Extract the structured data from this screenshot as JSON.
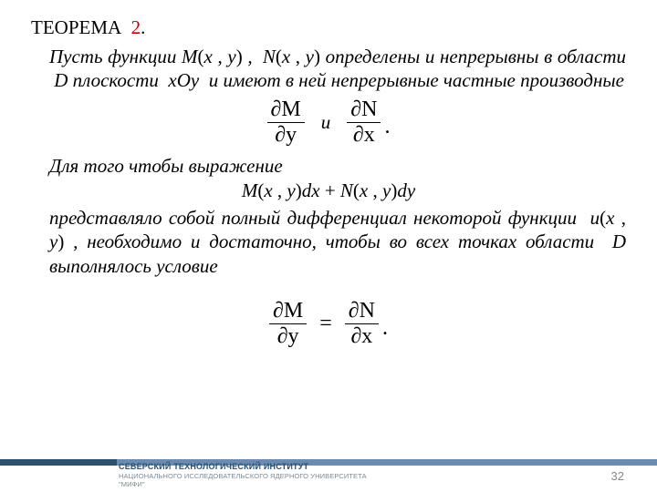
{
  "heading": {
    "label": "ТЕОРЕМА",
    "number": "2",
    "color": "#c00000"
  },
  "para1_a": "Пусть функции ",
  "M": "M",
  "N": "N",
  "u": "u",
  "args_open": "(",
  "args_close": ")",
  "x": "x",
  "y": "y",
  "comma": " , ",
  "para1_b": " , ",
  "para1_c": " определены и непрерывны в области ",
  "D": "D",
  "para1_d": " плоскости ",
  "xOy": "xOy",
  "para1_e": " и имеют в ней непрерывные частные производные",
  "formula1": {
    "top1": "∂M",
    "bot1": "∂y",
    "mid": "и",
    "top2": "∂N",
    "bot2": "∂x",
    "tail": "."
  },
  "para2": "Для того чтобы выражение",
  "expr": {
    "M": "M",
    "N": "N",
    "dx": "dx",
    "dy": "dy",
    "plus": " + "
  },
  "para3_a": "представляло собой полный дифференциал некоторой функции ",
  "para3_b": " , необходимо и достаточно, чтобы во всех точках области ",
  "para3_c": " выполнялось условие",
  "condition": {
    "top1": "∂M",
    "bot1": "∂y",
    "eq": "=",
    "top2": "∂N",
    "bot2": "∂x",
    "tail": "."
  },
  "footer": {
    "inst1": "СЕВЕРСКИЙ ТЕХНОЛОГИЧЕСКИЙ ИНСТИТУТ",
    "inst2": "НАЦИОНАЛЬНОГО ИССЛЕДОВАТЕЛЬСКОГО ЯДЕРНОГО УНИВЕРСИТЕТА \"МИФИ\"",
    "strip_color_left": "#2b516f",
    "strip_color_right": "#6b8bb0"
  },
  "pageNumber": "32"
}
